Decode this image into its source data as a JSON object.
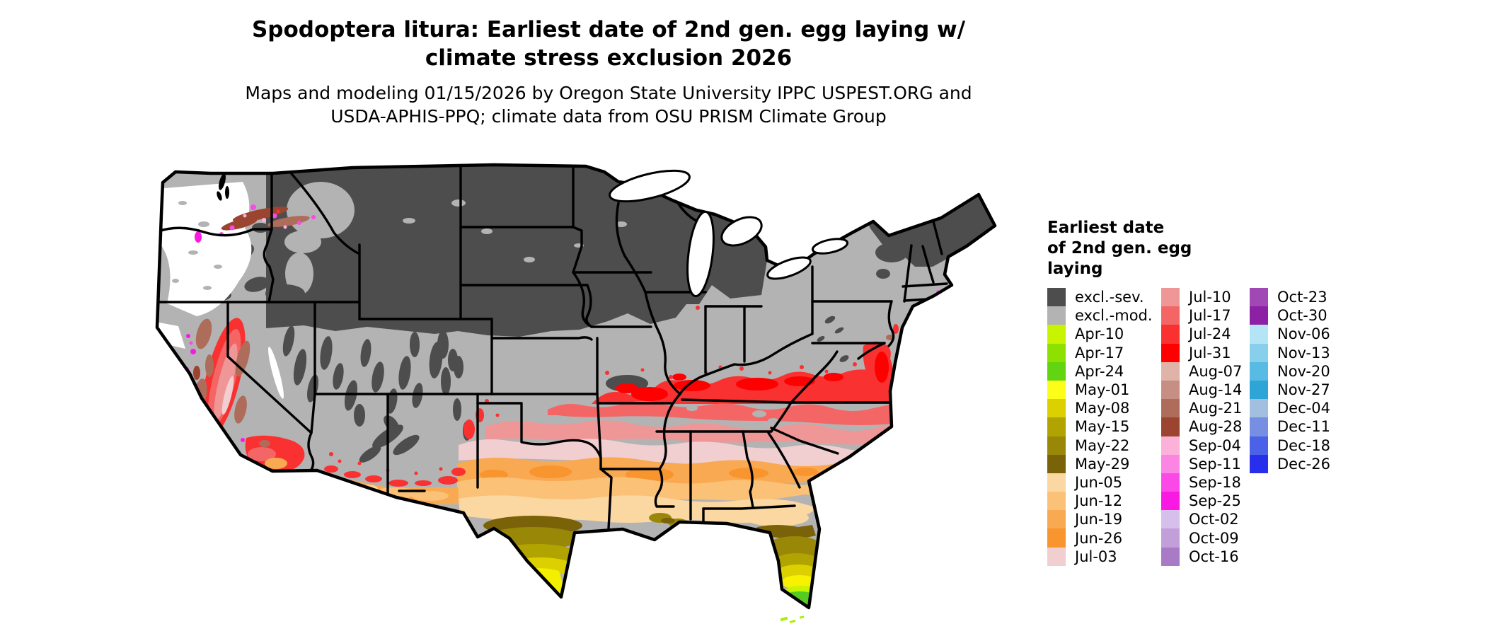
{
  "title": {
    "line1": "Spodoptera litura: Earliest date of 2nd gen. egg laying w/",
    "line2": "climate stress exclusion 2026"
  },
  "subtitle": {
    "line1": "Maps and modeling 01/15/2026 by Oregon State University IPPC USPEST.ORG and",
    "line2": "USDA-APHIS-PPQ; climate data from OSU PRISM Climate Group"
  },
  "legend": {
    "title_lines": [
      "Earliest date",
      "of 2nd gen. egg",
      "laying"
    ],
    "columns": [
      {
        "entries": [
          {
            "label": "excl.-sev.",
            "color": "#4d4d4d"
          },
          {
            "label": "excl.-mod.",
            "color": "#b3b3b3"
          },
          {
            "label": "Apr-10",
            "color": "#c8f400"
          },
          {
            "label": "Apr-17",
            "color": "#8ee000"
          },
          {
            "label": "Apr-24",
            "color": "#62d411"
          },
          {
            "label": "May-01",
            "color": "#fdfd1a"
          },
          {
            "label": "May-08",
            "color": "#dcd000"
          },
          {
            "label": "May-15",
            "color": "#b2a400"
          },
          {
            "label": "May-22",
            "color": "#998708"
          },
          {
            "label": "May-29",
            "color": "#7a6208"
          },
          {
            "label": "Jun-05",
            "color": "#fbd8a2"
          },
          {
            "label": "Jun-12",
            "color": "#fbc177"
          },
          {
            "label": "Jun-19",
            "color": "#f9a952"
          },
          {
            "label": "Jun-26",
            "color": "#f8952f"
          },
          {
            "label": "Jul-03",
            "color": "#f1ced0"
          }
        ]
      },
      {
        "entries": [
          {
            "label": "Jul-10",
            "color": "#ef9797"
          },
          {
            "label": "Jul-17",
            "color": "#f46666"
          },
          {
            "label": "Jul-24",
            "color": "#f93131"
          },
          {
            "label": "Jul-31",
            "color": "#ff0000"
          },
          {
            "label": "Aug-07",
            "color": "#dfb3a7"
          },
          {
            "label": "Aug-14",
            "color": "#c78f83"
          },
          {
            "label": "Aug-21",
            "color": "#ae6c5a"
          },
          {
            "label": "Aug-28",
            "color": "#9b4531"
          },
          {
            "label": "Sep-04",
            "color": "#fbb1d8"
          },
          {
            "label": "Sep-11",
            "color": "#fa85e2"
          },
          {
            "label": "Sep-18",
            "color": "#fb49e7"
          },
          {
            "label": "Sep-25",
            "color": "#fa19e3"
          },
          {
            "label": "Oct-02",
            "color": "#d7bfeb"
          },
          {
            "label": "Oct-09",
            "color": "#c29fd9"
          },
          {
            "label": "Oct-16",
            "color": "#a97bc7"
          }
        ]
      },
      {
        "entries": [
          {
            "label": "Oct-23",
            "color": "#a049b5"
          },
          {
            "label": "Oct-30",
            "color": "#8d21a5"
          },
          {
            "label": "Nov-06",
            "color": "#b3e5f7"
          },
          {
            "label": "Nov-13",
            "color": "#87cfeb"
          },
          {
            "label": "Nov-20",
            "color": "#57bbe3"
          },
          {
            "label": "Nov-27",
            "color": "#2fa4d7"
          },
          {
            "label": "Dec-04",
            "color": "#a3bfdf"
          },
          {
            "label": "Dec-11",
            "color": "#778fe3"
          },
          {
            "label": "Dec-18",
            "color": "#4b61e7"
          },
          {
            "label": "Dec-26",
            "color": "#272fed"
          }
        ]
      }
    ]
  },
  "map": {
    "excluded_severe_color": "#4d4d4d",
    "excluded_moderate_color": "#b3b3b3",
    "nodata_color": "#ffffff",
    "border_color": "#000000"
  }
}
